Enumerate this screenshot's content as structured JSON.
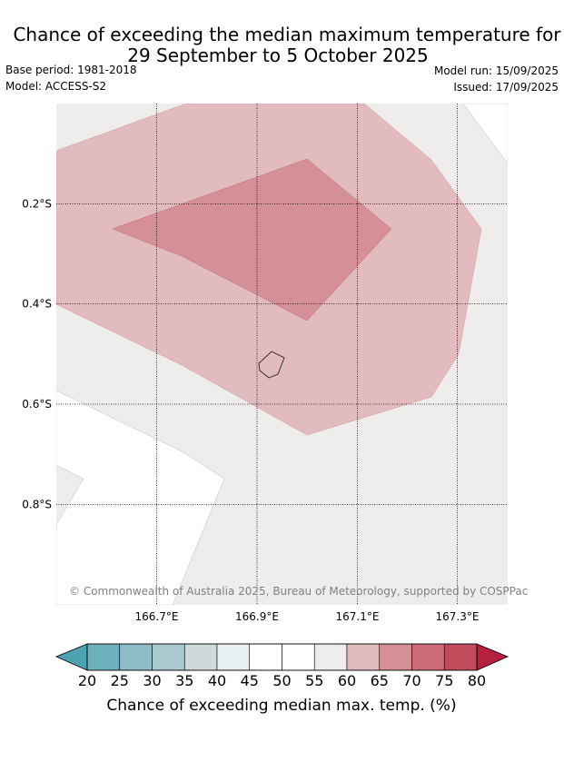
{
  "title": {
    "line1": "Chance of exceeding the median maximum temperature for",
    "line2": "29 September to 5 October 2025"
  },
  "meta": {
    "base_period": "Base period: 1981-2018",
    "model": "Model: ACCESS-S2",
    "model_run": "Model run: 15/09/2025",
    "issued": "Issued: 17/09/2025"
  },
  "map": {
    "lon_range": [
      166.5,
      167.4
    ],
    "lat_range": [
      -1.0,
      0.0
    ],
    "lon_ticks": [
      {
        "value": 166.7,
        "label": "166.7°E"
      },
      {
        "value": 166.9,
        "label": "166.9°E"
      },
      {
        "value": 167.1,
        "label": "167.1°E"
      },
      {
        "value": 167.3,
        "label": "167.3°E"
      }
    ],
    "lat_ticks": [
      {
        "value": -0.2,
        "label": "0.2°S"
      },
      {
        "value": -0.4,
        "label": "0.4°S"
      },
      {
        "value": -0.6,
        "label": "0.6°S"
      },
      {
        "value": -0.8,
        "label": "0.8°S"
      }
    ],
    "copyright": "© Commonwealth of Australia 2025, Bureau of Meteorology, supported by COSPPac"
  },
  "colorbar": {
    "title": "Chance of exceeding median max. temp. (%)",
    "labels": [
      "20",
      "25",
      "30",
      "35",
      "40",
      "45",
      "50",
      "55",
      "60",
      "65",
      "70",
      "75",
      "80"
    ],
    "low_extend_color": "#4da2b2",
    "high_extend_color": "#b5203e",
    "colors": [
      "#6db0be",
      "#8dbcc7",
      "#a9c9ce",
      "#ced9db",
      "#e9f0f2",
      "#ffffff",
      "#ffffff",
      "#eeedec",
      "#e2bbbf",
      "#d48f97",
      "#cb6b77",
      "#c14a5b"
    ]
  }
}
